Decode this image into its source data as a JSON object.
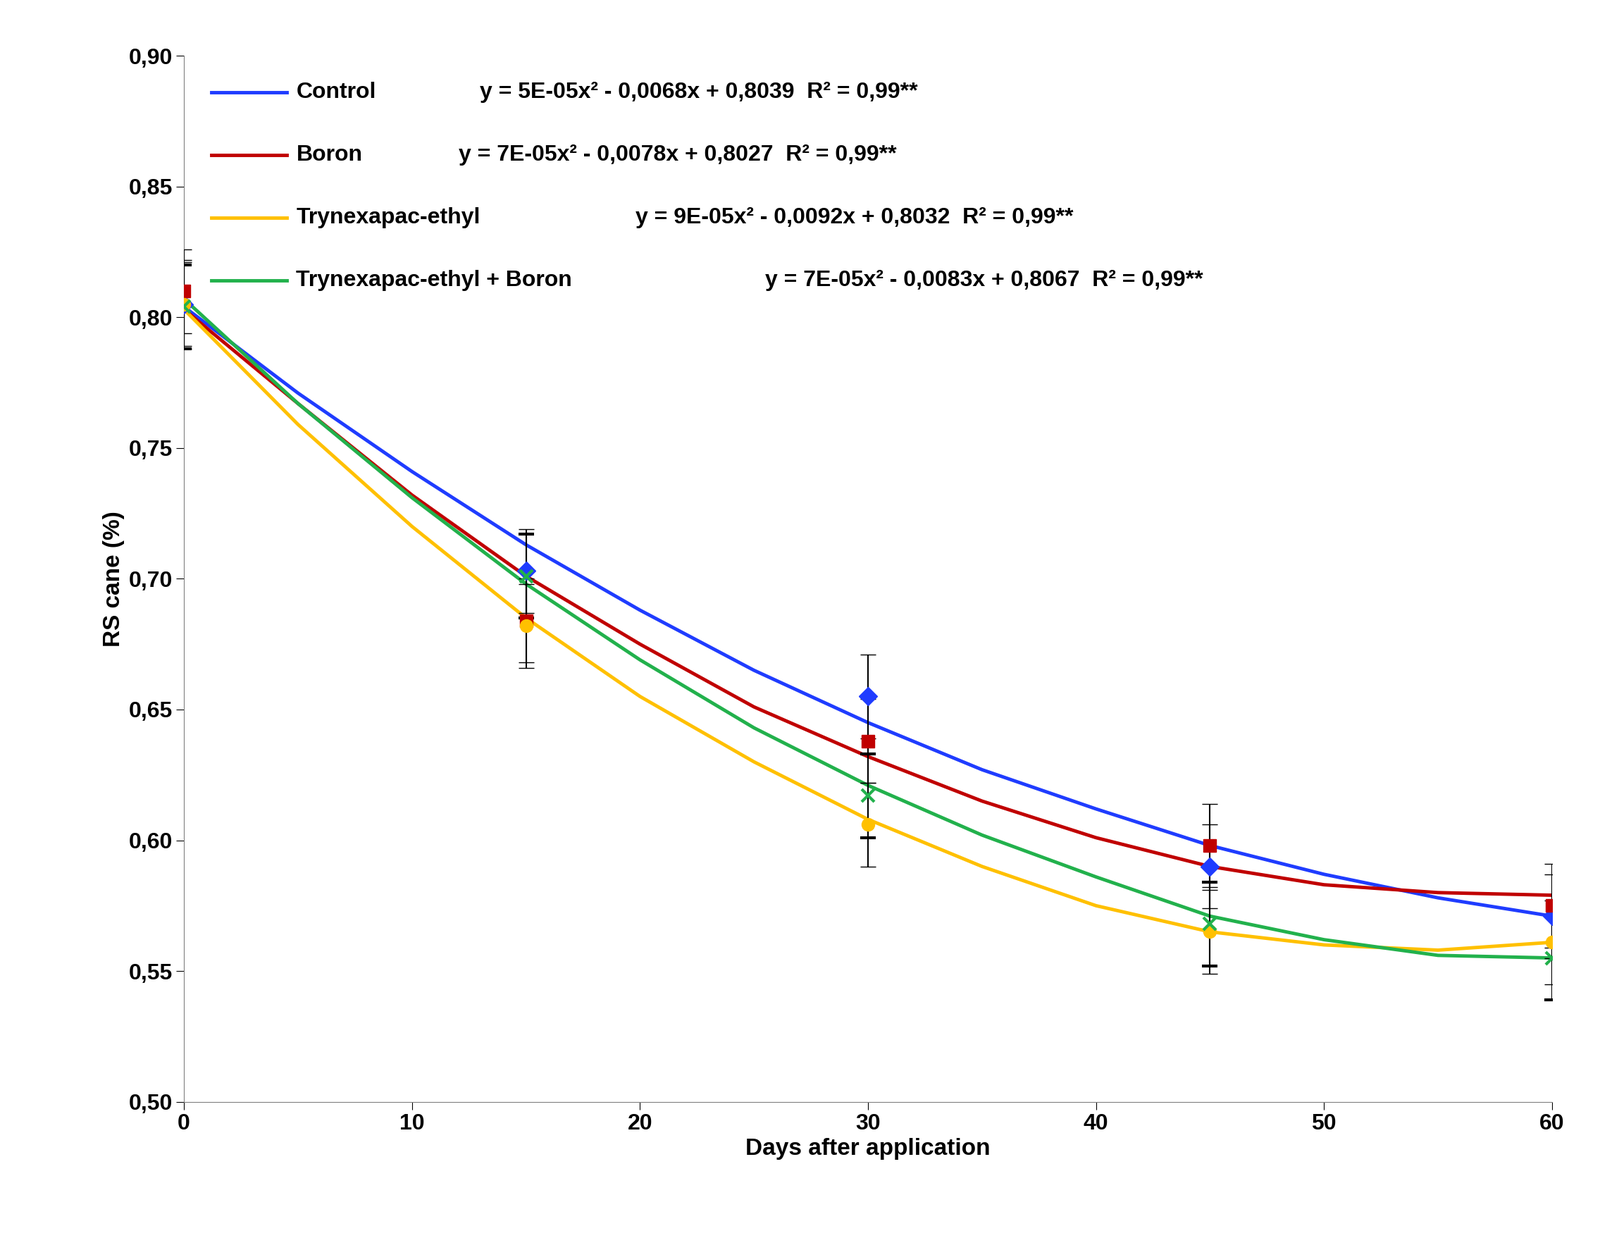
{
  "chart_data": {
    "type": "scatter",
    "x_label": "Days after application",
    "y_label": "RS cane (%)",
    "xlim": [
      0,
      60
    ],
    "xticks": [
      0,
      10,
      20,
      30,
      40,
      50,
      60
    ],
    "ylim": [
      0.5,
      0.9
    ],
    "yticks": [
      {
        "value": 0.5,
        "label": "0,50"
      },
      {
        "value": 0.55,
        "label": "0,55"
      },
      {
        "value": 0.6,
        "label": "0,60"
      },
      {
        "value": 0.65,
        "label": "0,65"
      },
      {
        "value": 0.7,
        "label": "0,70"
      },
      {
        "value": 0.75,
        "label": "0,75"
      },
      {
        "value": 0.8,
        "label": "0,80"
      },
      {
        "value": 0.85,
        "label": "0,85"
      },
      {
        "value": 0.9,
        "label": "0,90"
      }
    ],
    "grid": false,
    "x": [
      0,
      15,
      30,
      45,
      60
    ],
    "series": [
      {
        "name": "Control",
        "color": "#1f3cff",
        "marker": "diamond",
        "equation": "y = 5E-05x² - 0,0068x + 0,8039  R² = 0,99**",
        "values": [
          0.805,
          0.703,
          0.655,
          0.59,
          0.571
        ],
        "errors": [
          0.017,
          0.016,
          0.016,
          0.016,
          0.016
        ],
        "trend": {
          "x": [
            0,
            5,
            10,
            15,
            20,
            25,
            30,
            35,
            40,
            45,
            50,
            55,
            60
          ],
          "values": [
            0.804,
            0.771,
            0.741,
            0.713,
            0.688,
            0.665,
            0.645,
            0.627,
            0.612,
            0.598,
            0.587,
            0.578,
            0.571
          ]
        }
      },
      {
        "name": "Boron",
        "color": "#c00000",
        "marker": "square",
        "equation": "y = 7E-05x² - 0,0078x + 0,8027  R² = 0,99**",
        "values": [
          0.81,
          0.684,
          0.638,
          0.598,
          0.575
        ],
        "errors": [
          0.016,
          0.016,
          0.016,
          0.016,
          0.016
        ],
        "trend": {
          "x": [
            0,
            5,
            10,
            15,
            20,
            25,
            30,
            35,
            40,
            45,
            50,
            55,
            60
          ],
          "values": [
            0.803,
            0.767,
            0.732,
            0.701,
            0.675,
            0.651,
            0.632,
            0.615,
            0.601,
            0.59,
            0.583,
            0.58,
            0.579
          ]
        }
      },
      {
        "name": "Trynexapac-ethyl",
        "color": "#ffc000",
        "marker": "circle",
        "equation": "y = 9E-05x² - 0,0092x + 0,8032  R² = 0,99**",
        "values": [
          0.805,
          0.682,
          0.606,
          0.565,
          0.561
        ],
        "errors": [
          0.016,
          0.016,
          0.016,
          0.016,
          0.016
        ],
        "trend": {
          "x": [
            0,
            5,
            10,
            15,
            20,
            25,
            30,
            35,
            40,
            45,
            50,
            55,
            60
          ],
          "values": [
            0.803,
            0.759,
            0.72,
            0.685,
            0.655,
            0.63,
            0.608,
            0.59,
            0.575,
            0.565,
            0.56,
            0.558,
            0.561
          ]
        }
      },
      {
        "name": "Trynexapac-ethyl + Boron",
        "color": "#22b14c",
        "marker": "x",
        "equation": "y = 7E-05x² - 0,0083x + 0,8067  R² = 0,99**",
        "values": [
          0.804,
          0.701,
          0.617,
          0.568,
          0.555
        ],
        "errors": [
          0.016,
          0.016,
          0.016,
          0.016,
          0.016
        ],
        "trend": {
          "x": [
            0,
            5,
            10,
            15,
            20,
            25,
            30,
            35,
            40,
            45,
            50,
            55,
            60
          ],
          "values": [
            0.807,
            0.767,
            0.731,
            0.698,
            0.669,
            0.643,
            0.621,
            0.602,
            0.586,
            0.571,
            0.562,
            0.556,
            0.555
          ]
        }
      }
    ]
  }
}
